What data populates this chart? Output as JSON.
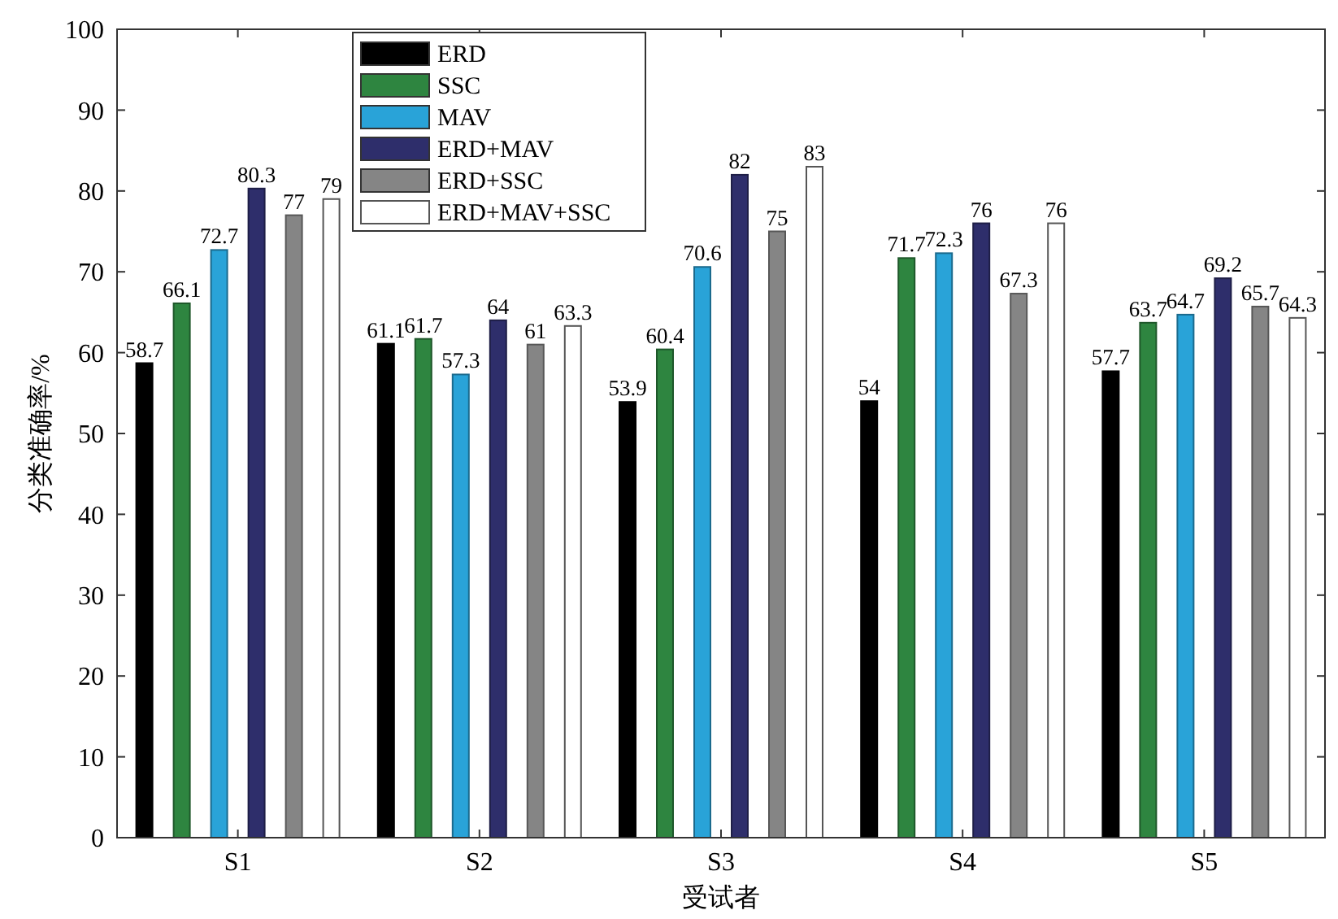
{
  "chart_data": {
    "type": "bar",
    "xlabel": "受试者",
    "ylabel": "分类准确率/%",
    "categories": [
      "S1",
      "S2",
      "S3",
      "S4",
      "S5"
    ],
    "series": [
      {
        "name": "ERD",
        "color": "#000000",
        "values": [
          58.7,
          61.1,
          53.9,
          54,
          57.7
        ]
      },
      {
        "name": "SSC",
        "color": "#2e8540",
        "values": [
          66.1,
          61.7,
          60.4,
          71.7,
          63.7
        ]
      },
      {
        "name": "MAV",
        "color": "#29a3d8",
        "values": [
          72.7,
          57.3,
          70.6,
          72.3,
          64.7
        ]
      },
      {
        "name": "ERD+MAV",
        "color": "#2e2e6b",
        "values": [
          80.3,
          64,
          82,
          76,
          69.2
        ]
      },
      {
        "name": "ERD+SSC",
        "color": "#858585",
        "values": [
          77,
          61,
          75,
          67.3,
          65.7
        ]
      },
      {
        "name": "ERD+MAV+SSC",
        "color": "#ffffff",
        "values": [
          79,
          63.3,
          83,
          76,
          64.3
        ]
      }
    ],
    "ylim": [
      0,
      100
    ],
    "yticks": [
      0,
      10,
      20,
      30,
      40,
      50,
      60,
      70,
      80,
      90,
      100
    ],
    "data_labels": true,
    "legend": "top left",
    "grid": false
  }
}
